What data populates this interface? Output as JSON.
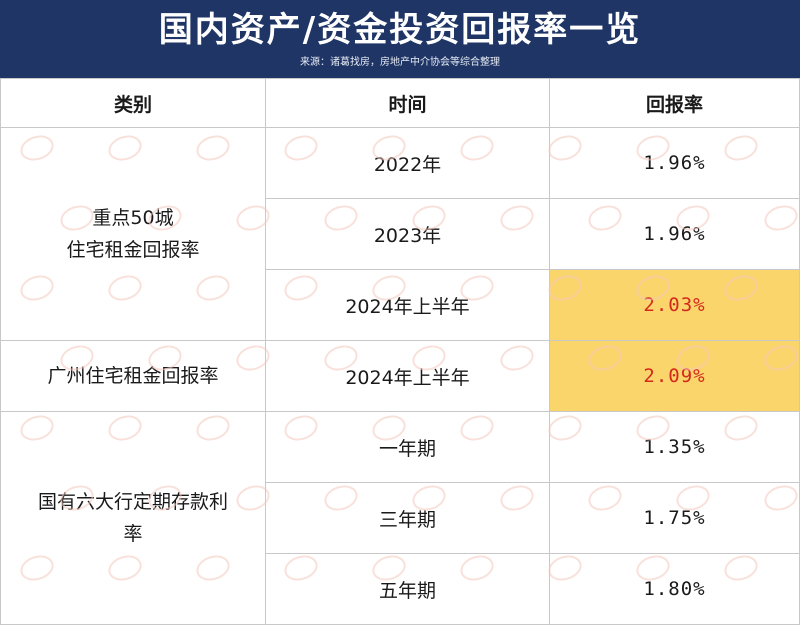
{
  "header": {
    "title": "国内资产/资金投资回报率一览",
    "source": "来源：诸葛找房，房地产中介协会等综合整理",
    "bg_color": "#1e3566"
  },
  "table": {
    "columns": [
      "类别",
      "时间",
      "回报率"
    ],
    "groups": [
      {
        "category_line1": "重点50城",
        "category_line2": "住宅租金回报率",
        "rows": [
          {
            "time": "2022年",
            "rate": "1.96%",
            "highlight": false
          },
          {
            "time": "2023年",
            "rate": "1.96%",
            "highlight": false
          },
          {
            "time": "2024年上半年",
            "rate": "2.03%",
            "highlight": true
          }
        ]
      },
      {
        "category_line1": "广州住宅租金回报率",
        "rows": [
          {
            "time": "2024年上半年",
            "rate": "2.09%",
            "highlight": true
          }
        ]
      },
      {
        "category_line1": "国有六大行定期存款利",
        "category_line2": "率",
        "rows": [
          {
            "time": "一年期",
            "rate": "1.35%",
            "highlight": false
          },
          {
            "time": "三年期",
            "rate": "1.75%",
            "highlight": false
          },
          {
            "time": "五年期",
            "rate": "1.80%",
            "highlight": false
          }
        ]
      }
    ],
    "highlight_bg": "#fad56b",
    "highlight_text": "#d42a1e"
  }
}
